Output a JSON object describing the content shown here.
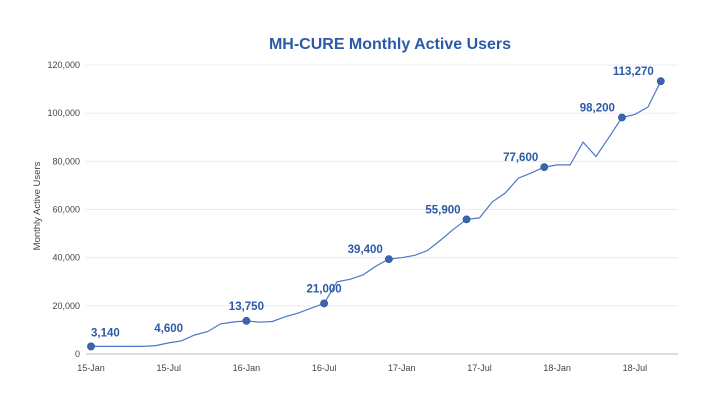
{
  "chart_data": {
    "type": "line",
    "title": "MH-CURE Monthly Active Users",
    "xlabel": "",
    "ylabel": "Monthly Active Users",
    "ylim": [
      0,
      120000
    ],
    "yticks": [
      0,
      20000,
      40000,
      60000,
      80000,
      100000,
      120000
    ],
    "ytick_labels": [
      "0",
      "20,000",
      "40,000",
      "60,000",
      "80,000",
      "100,000",
      "120,000"
    ],
    "xtick_labels": [
      "15-Jan",
      "15-Jul",
      "16-Jan",
      "16-Jul",
      "17-Jan",
      "17-Jul",
      "18-Jan",
      "18-Jul"
    ],
    "grid": true,
    "legend": "none",
    "line_color": "#4a78c8",
    "marker_color": "#3a66b0",
    "x_start": "2015-01",
    "x_interval": "month",
    "values": [
      3140,
      3140,
      3140,
      3140,
      3140,
      3500,
      4600,
      5500,
      7900,
      9300,
      12500,
      13300,
      13750,
      13200,
      13500,
      15500,
      17000,
      19000,
      21000,
      30000,
      31000,
      32800,
      36500,
      39400,
      40000,
      41000,
      43000,
      47300,
      51800,
      55900,
      56500,
      63200,
      66900,
      73000,
      75200,
      77600,
      78500,
      78500,
      88000,
      82000,
      90000,
      98200,
      99500,
      102500,
      113270
    ],
    "data_labels": [
      {
        "month": "2015-01",
        "text": "3,140",
        "marker": true
      },
      {
        "month": "2015-07",
        "text": "4,600",
        "marker": false
      },
      {
        "month": "2016-01",
        "text": "13,750",
        "marker": true
      },
      {
        "month": "2016-07",
        "text": "21,000",
        "marker": true
      },
      {
        "month": "2016-12",
        "text": "39,400",
        "marker": true
      },
      {
        "month": "2017-06",
        "text": "55,900",
        "marker": true
      },
      {
        "month": "2017-12",
        "text": "77,600",
        "marker": true
      },
      {
        "month": "2018-06",
        "text": "98,200",
        "marker": true
      },
      {
        "month": "2018-09",
        "text": "113,270",
        "marker": true
      }
    ]
  }
}
